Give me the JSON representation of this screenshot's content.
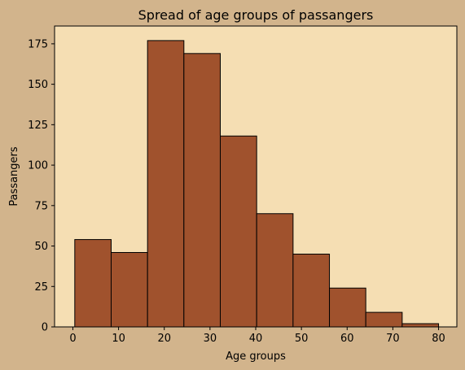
{
  "chart_data": {
    "type": "bar",
    "title": "Spread of age groups of passangers",
    "xlabel": "Age groups",
    "ylabel": "Passangers",
    "x_ticks": [
      0,
      10,
      20,
      30,
      40,
      50,
      60,
      70,
      80
    ],
    "y_ticks": [
      0,
      25,
      50,
      75,
      100,
      125,
      150,
      175
    ],
    "xlim": [
      -4,
      84
    ],
    "ylim": [
      0,
      186
    ],
    "bins": [
      {
        "start": 0.42,
        "end": 8.38,
        "value": 54
      },
      {
        "start": 8.38,
        "end": 16.34,
        "value": 46
      },
      {
        "start": 16.34,
        "end": 24.29,
        "value": 177
      },
      {
        "start": 24.29,
        "end": 32.25,
        "value": 169
      },
      {
        "start": 32.25,
        "end": 40.21,
        "value": 118
      },
      {
        "start": 40.21,
        "end": 48.17,
        "value": 70
      },
      {
        "start": 48.17,
        "end": 56.13,
        "value": 45
      },
      {
        "start": 56.13,
        "end": 64.08,
        "value": 24
      },
      {
        "start": 64.08,
        "end": 72.04,
        "value": 9
      },
      {
        "start": 72.04,
        "end": 80.0,
        "value": 2
      }
    ],
    "grid": false,
    "colors": {
      "figure_background": "#d2b48c",
      "plot_background": "#f5deb3",
      "bar_fill": "#a0522d",
      "bar_edge": "#000000"
    }
  }
}
